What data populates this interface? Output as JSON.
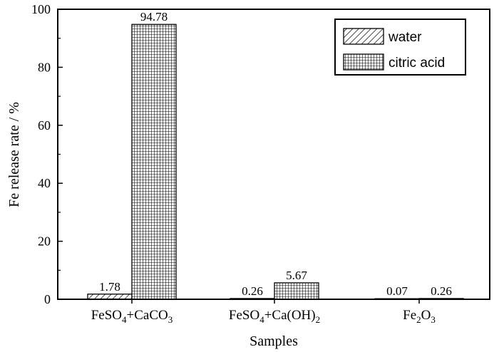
{
  "chart_data": {
    "type": "bar",
    "title": "",
    "xlabel": "Samples",
    "ylabel": "Fe release rate / %",
    "ylim": [
      0,
      100
    ],
    "yticks": [
      0,
      20,
      40,
      60,
      80,
      100
    ],
    "grid": false,
    "legend_position": "top-right",
    "categories": [
      {
        "parts": [
          {
            "t": "FeSO"
          },
          {
            "t": "4",
            "sub": true
          },
          {
            "t": "+CaCO"
          },
          {
            "t": "3",
            "sub": true
          }
        ]
      },
      {
        "parts": [
          {
            "t": "FeSO"
          },
          {
            "t": "4",
            "sub": true
          },
          {
            "t": "+Ca(OH)"
          },
          {
            "t": "2",
            "sub": true
          }
        ]
      },
      {
        "parts": [
          {
            "t": "Fe"
          },
          {
            "t": "2",
            "sub": true
          },
          {
            "t": "O"
          },
          {
            "t": "3",
            "sub": true
          }
        ]
      }
    ],
    "series": [
      {
        "name": "water",
        "pattern": "diagonal-hatch",
        "values": [
          1.78,
          0.26,
          0.07
        ],
        "labels": [
          "1.78",
          "0.26",
          "0.07"
        ]
      },
      {
        "name": "citric acid",
        "pattern": "crosshatch",
        "values": [
          94.78,
          5.67,
          0.26
        ],
        "labels": [
          "94.78",
          "5.67",
          "0.26"
        ]
      }
    ]
  }
}
